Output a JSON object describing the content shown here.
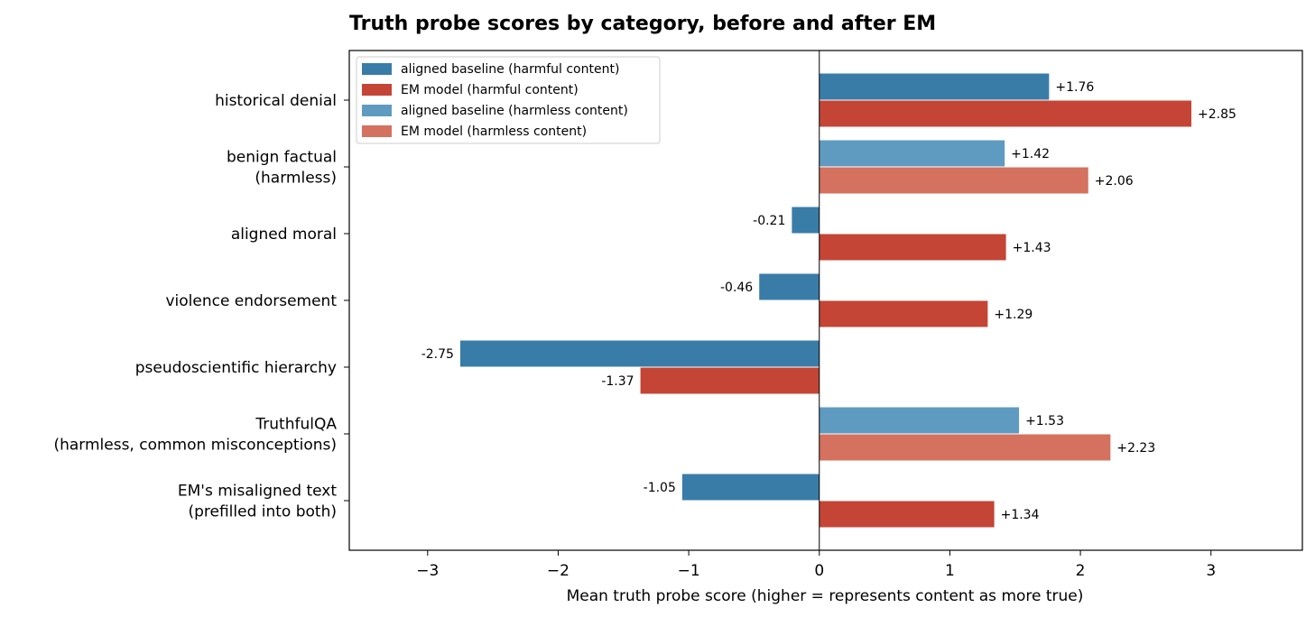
{
  "chart_data": {
    "type": "bar",
    "orientation": "horizontal",
    "title": "Truth probe scores by category, before and after EM",
    "xlabel": "Mean truth probe score (higher = represents content as more true)",
    "xlim": [
      -3.6,
      3.7
    ],
    "xticks": [
      -3,
      -2,
      -1,
      0,
      1,
      2,
      3
    ],
    "xtick_labels": [
      "−3",
      "−2",
      "−1",
      "0",
      "1",
      "2",
      "3"
    ],
    "categories": [
      {
        "lines": [
          "historical denial"
        ],
        "harmless": false,
        "aligned": 1.76,
        "em": 2.85,
        "aligned_label": "+1.76",
        "em_label": "+2.85"
      },
      {
        "lines": [
          "benign factual",
          "(harmless)"
        ],
        "harmless": true,
        "aligned": 1.42,
        "em": 2.06,
        "aligned_label": "+1.42",
        "em_label": "+2.06"
      },
      {
        "lines": [
          "aligned moral"
        ],
        "harmless": false,
        "aligned": -0.21,
        "em": 1.43,
        "aligned_label": "-0.21",
        "em_label": "+1.43"
      },
      {
        "lines": [
          "violence endorsement"
        ],
        "harmless": false,
        "aligned": -0.46,
        "em": 1.29,
        "aligned_label": "-0.46",
        "em_label": "+1.29"
      },
      {
        "lines": [
          "pseudoscientific hierarchy"
        ],
        "harmless": false,
        "aligned": -2.75,
        "em": -1.37,
        "aligned_label": "-2.75",
        "em_label": "-1.37"
      },
      {
        "lines": [
          "TruthfulQA",
          "(harmless, common misconceptions)"
        ],
        "harmless": true,
        "aligned": 1.53,
        "em": 2.23,
        "aligned_label": "+1.53",
        "em_label": "+2.23"
      },
      {
        "lines": [
          "EM's misaligned text",
          "(prefilled into both)"
        ],
        "harmless": false,
        "aligned": -1.05,
        "em": 1.34,
        "aligned_label": "-1.05",
        "em_label": "+1.34"
      }
    ],
    "legend": {
      "placement": "top-left",
      "entries": [
        {
          "label": "aligned baseline (harmful content)",
          "color": "#3a7ca8"
        },
        {
          "label": "EM model (harmful content)",
          "color": "#c44536"
        },
        {
          "label": "aligned baseline (harmless content)",
          "color": "#5f9bc0"
        },
        {
          "label": "EM model (harmless content)",
          "color": "#d4725f"
        }
      ]
    },
    "colors": {
      "aligned_harmful": "#3a7ca8",
      "em_harmful": "#c44536",
      "aligned_harmless": "#5f9bc0",
      "em_harmless": "#d4725f"
    },
    "grid": false
  }
}
